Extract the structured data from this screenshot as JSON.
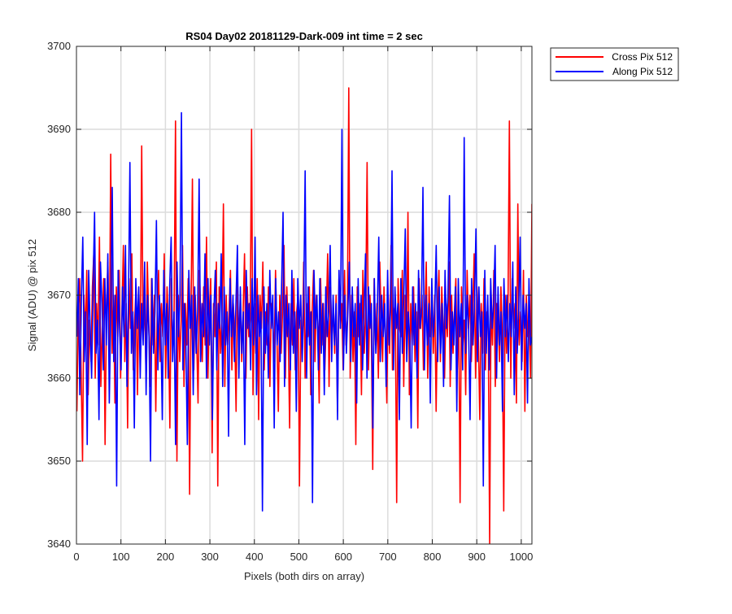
{
  "chart_data": {
    "type": "line",
    "title": "RS04 Day02 20181129-Dark-009 int time = 2 sec",
    "xlabel": "Pixels (both dirs on array)",
    "ylabel": "Signal (ADU) @ pix 512",
    "xlim": [
      0,
      1024
    ],
    "ylim": [
      3640,
      3700
    ],
    "xticks": [
      0,
      100,
      200,
      300,
      400,
      500,
      600,
      700,
      800,
      900,
      1000
    ],
    "yticks": [
      3640,
      3650,
      3660,
      3670,
      3680,
      3690,
      3700
    ],
    "grid": true,
    "legend_position": "outside-top-right",
    "series": [
      {
        "name": "Cross Pix 512",
        "color": "#ff0000",
        "x_start": 1,
        "x_step": 1,
        "values": [
          3656,
          3668,
          3672,
          3661,
          3650,
          3670,
          3665,
          3673,
          3658,
          3667,
          3662,
          3671,
          3675,
          3660,
          3669,
          3664,
          3677,
          3659,
          3666,
          3672,
          3652,
          3668,
          3674,
          3661,
          3687,
          3663,
          3670,
          3657,
          3671,
          3665,
          3673,
          3660,
          3668,
          3676,
          3662,
          3669,
          3654,
          3672,
          3666,
          3675,
          3661,
          3667,
          3671,
          3658,
          3670,
          3663,
          3688,
          3665,
          3669,
          3661,
          3674,
          3667,
          3659,
          3672,
          3664,
          3670,
          3656,
          3668,
          3673,
          3662,
          3669,
          3665,
          3675,
          3660,
          3671,
          3666,
          3654,
          3672,
          3663,
          3668,
          3691,
          3650,
          3670,
          3662,
          3667,
          3676,
          3659,
          3669,
          3664,
          3672,
          3646,
          3668,
          3684,
          3661,
          3670,
          3665,
          3657,
          3673,
          3667,
          3662,
          3671,
          3664,
          3677,
          3660,
          3668,
          3672,
          3651,
          3669,
          3665,
          3674,
          3647,
          3671,
          3663,
          3667,
          3681,
          3659,
          3670,
          3664,
          3668,
          3673,
          3661,
          3669,
          3666,
          3656,
          3672,
          3664,
          3670,
          3662,
          3668,
          3675,
          3660,
          3671,
          3665,
          3667,
          3690,
          3658,
          3669,
          3663,
          3672,
          3655,
          3670,
          3666,
          3674,
          3661,
          3668,
          3664,
          3671,
          3659,
          3669,
          3667,
          3662,
          3673,
          3665,
          3656,
          3670,
          3663,
          3668,
          3676,
          3660,
          3671,
          3666,
          3654,
          3669,
          3664,
          3672,
          3661,
          3668,
          3670,
          3647,
          3667,
          3663,
          3674,
          3660,
          3669,
          3665,
          3671,
          3658,
          3668,
          3673,
          3662,
          3670,
          3666,
          3657,
          3672,
          3664,
          3669,
          3661,
          3667,
          3675,
          3659,
          3671,
          3665,
          3668,
          3663,
          3670,
          3656,
          3672,
          3666,
          3669,
          3661,
          3673,
          3664,
          3667,
          3695,
          3660,
          3670,
          3662,
          3668,
          3652,
          3671,
          3665,
          3669,
          3658,
          3673,
          3663,
          3668,
          3686,
          3661,
          3670,
          3666,
          3649,
          3672,
          3664,
          3669,
          3660,
          3674,
          3667,
          3662,
          3671,
          3665,
          3657,
          3670,
          3663,
          3676,
          3661,
          3668,
          3669,
          3645,
          3672,
          3666,
          3665,
          3673,
          3659,
          3670,
          3663,
          3680,
          3658,
          3669,
          3664,
          3671,
          3662,
          3668,
          3654,
          3672,
          3666,
          3670,
          3661,
          3667,
          3674,
          3660,
          3671,
          3665,
          3669,
          3663,
          3670,
          3656,
          3668,
          3673,
          3662,
          3671,
          3666,
          3660,
          3669,
          3665,
          3674,
          3659,
          3670,
          3663,
          3668,
          3672,
          3661,
          3669,
          3645,
          3671,
          3664,
          3667,
          3658,
          3673,
          3666,
          3670,
          3662,
          3668,
          3675,
          3660,
          3671,
          3665,
          3655,
          3669,
          3663,
          3672,
          3661,
          3668,
          3666,
          3640,
          3670,
          3664,
          3673,
          3659,
          3669,
          3667,
          3662,
          3671,
          3665,
          3644,
          3670,
          3663,
          3668,
          3691,
          3660,
          3672,
          3666,
          3669,
          3657,
          3681,
          3664,
          3668,
          3662,
          3673,
          3656,
          3670,
          3665,
          3667,
          3660,
          3681
        ]
      },
      {
        "name": "Along Pix 512",
        "color": "#0000ff",
        "x_start": 1,
        "x_step": 1,
        "values": [
          3665,
          3672,
          3658,
          3669,
          3677,
          3662,
          3668,
          3652,
          3673,
          3666,
          3660,
          3671,
          3680,
          3663,
          3667,
          3655,
          3674,
          3669,
          3661,
          3672,
          3664,
          3675,
          3657,
          3668,
          3683,
          3662,
          3670,
          3647,
          3673,
          3666,
          3661,
          3671,
          3665,
          3676,
          3659,
          3669,
          3686,
          3663,
          3668,
          3654,
          3672,
          3666,
          3671,
          3660,
          3669,
          3664,
          3674,
          3658,
          3670,
          3665,
          3650,
          3672,
          3663,
          3668,
          3679,
          3661,
          3670,
          3666,
          3655,
          3673,
          3664,
          3669,
          3660,
          3671,
          3677,
          3662,
          3668,
          3652,
          3674,
          3665,
          3670,
          3692,
          3661,
          3669,
          3664,
          3652,
          3673,
          3666,
          3670,
          3658,
          3671,
          3663,
          3668,
          3684,
          3662,
          3669,
          3665,
          3675,
          3660,
          3672,
          3664,
          3670,
          3655,
          3668,
          3673,
          3661,
          3669,
          3666,
          3675,
          3659,
          3671,
          3664,
          3668,
          3653,
          3672,
          3665,
          3670,
          3662,
          3669,
          3676,
          3660,
          3671,
          3663,
          3668,
          3652,
          3673,
          3666,
          3669,
          3661,
          3672,
          3664,
          3677,
          3658,
          3670,
          3665,
          3668,
          3644,
          3671,
          3663,
          3669,
          3660,
          3673,
          3666,
          3670,
          3654,
          3672,
          3664,
          3668,
          3662,
          3671,
          3680,
          3659,
          3670,
          3665,
          3669,
          3661,
          3673,
          3663,
          3668,
          3656,
          3672,
          3666,
          3670,
          3662,
          3669,
          3685,
          3660,
          3671,
          3664,
          3668,
          3645,
          3673,
          3666,
          3670,
          3661,
          3672,
          3663,
          3669,
          3658,
          3671,
          3665,
          3668,
          3676,
          3662,
          3670,
          3664,
          3669,
          3655,
          3673,
          3666,
          3690,
          3661,
          3670,
          3663,
          3668,
          3674,
          3662,
          3671,
          3665,
          3669,
          3657,
          3672,
          3664,
          3670,
          3661,
          3668,
          3675,
          3660,
          3671,
          3666,
          3669,
          3654,
          3672,
          3663,
          3668,
          3677,
          3662,
          3670,
          3665,
          3669,
          3659,
          3673,
          3664,
          3668,
          3685,
          3661,
          3671,
          3666,
          3669,
          3655,
          3672,
          3663,
          3670,
          3678,
          3662,
          3668,
          3665,
          3654,
          3671,
          3664,
          3669,
          3660,
          3673,
          3666,
          3668,
          3683,
          3661,
          3670,
          3664,
          3669,
          3657,
          3672,
          3665,
          3668,
          3676,
          3662,
          3671,
          3663,
          3669,
          3659,
          3673,
          3666,
          3670,
          3682,
          3661,
          3668,
          3664,
          3671,
          3656,
          3672,
          3665,
          3669,
          3661,
          3689,
          3663,
          3670,
          3666,
          3655,
          3672,
          3664,
          3669,
          3678,
          3662,
          3671,
          3665,
          3668,
          3647,
          3673,
          3663,
          3670,
          3661,
          3672,
          3666,
          3669,
          3676,
          3660,
          3671,
          3664,
          3668,
          3656,
          3672,
          3665,
          3670,
          3662,
          3669,
          3665,
          3674,
          3658,
          3671,
          3663,
          3668,
          3677,
          3661,
          3670,
          3666,
          3669,
          3657,
          3672,
          3664,
          3665
        ]
      }
    ]
  }
}
